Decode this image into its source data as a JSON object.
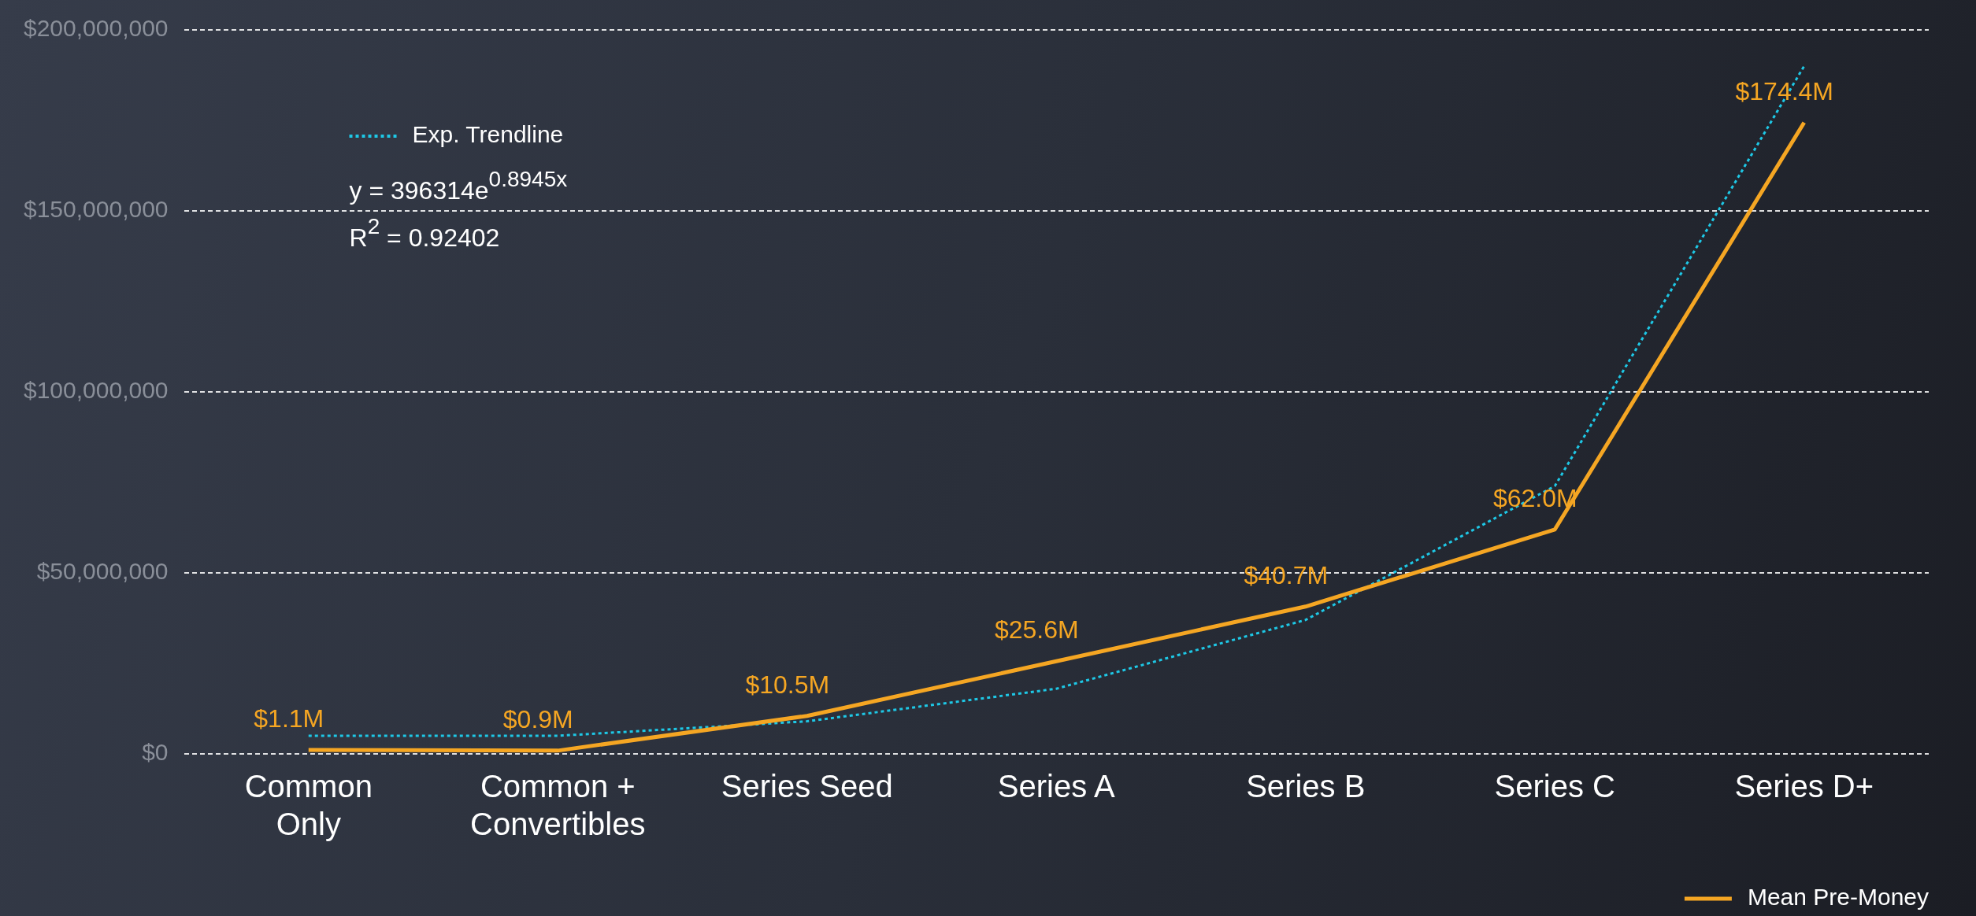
{
  "chart_data": {
    "type": "line",
    "categories": [
      "Common\nOnly",
      "Common +\nConvertibles",
      "Series Seed",
      "Series A",
      "Series B",
      "Series C",
      "Series D+"
    ],
    "series": [
      {
        "name": "Mean Pre-Money",
        "color": "#f5a623",
        "values": [
          1100000,
          900000,
          10500000,
          25600000,
          40700000,
          62000000,
          174400000
        ],
        "value_labels": [
          "$1.1M",
          "$0.9M",
          "$10.5M",
          "$25.6M",
          "$40.7M",
          "$62.0M",
          "$174.4M"
        ]
      },
      {
        "name": "Exp. Trendline",
        "color": "#1ec8e6",
        "line_style": "dotted",
        "values": [
          5000000,
          5000000,
          9000000,
          18000000,
          37000000,
          74000000,
          190000000
        ]
      }
    ],
    "ylim": [
      0,
      200000000
    ],
    "yticks": [
      {
        "value": 0,
        "label": "$0"
      },
      {
        "value": 50000000,
        "label": "$50,000,000"
      },
      {
        "value": 100000000,
        "label": "$100,000,000"
      },
      {
        "value": 150000000,
        "label": "$150,000,000"
      },
      {
        "value": 200000000,
        "label": "$200,000,000"
      }
    ],
    "grid": "y",
    "legend": "bottom right",
    "marker": "none",
    "annotations": [
      "y = 396314e$^{0.8945x}$",
      "R$^{2}$ = 0.92402"
    ]
  }
}
